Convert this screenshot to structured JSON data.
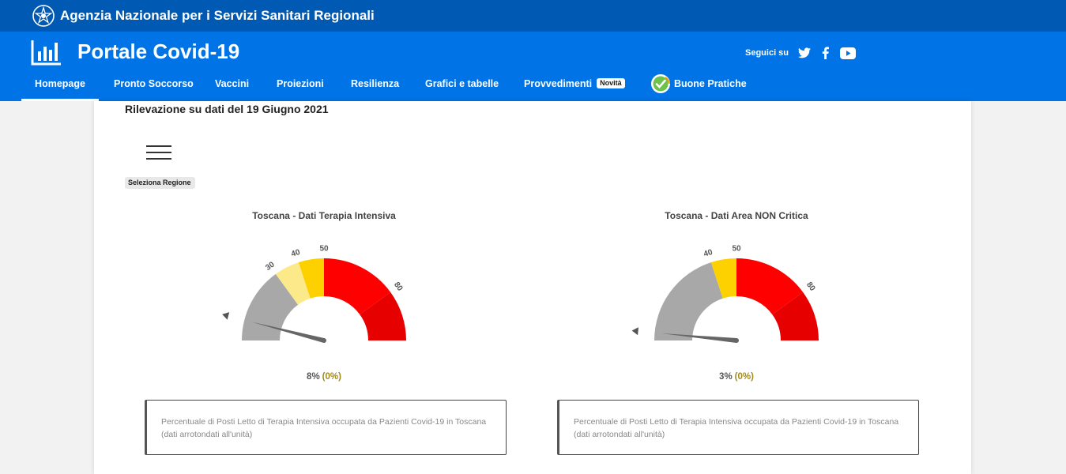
{
  "agency": {
    "title": "Agenzia Nazionale per i Servizi Sanitari Regionali"
  },
  "portal": {
    "title": "Portale Covid-19"
  },
  "social": {
    "follow_label": "Seguici su",
    "icons": [
      "twitter-icon",
      "facebook-icon",
      "youtube-icon"
    ]
  },
  "nav": {
    "items": [
      {
        "label": "Homepage",
        "active": true
      },
      {
        "label": "Pronto Soccorso"
      },
      {
        "label": "Vaccini"
      },
      {
        "label": "Proiezioni"
      },
      {
        "label": "Resilienza"
      },
      {
        "label": "Grafici e tabelle"
      },
      {
        "label": "Provvedimenti",
        "badge": "Novità"
      },
      {
        "label": "Buone Pratiche"
      }
    ]
  },
  "content": {
    "survey_date": "Rilevazione su dati del 19 Giugno 2021",
    "region_select_label": "Seleziona Regione"
  },
  "gauges": [
    {
      "title": "Toscana - Dati Terapia Intensiva",
      "value_pct": 8,
      "value_text": "8%",
      "delta_text": "(0%)",
      "tick_labels": [
        "30",
        "40",
        "50",
        "80"
      ],
      "bands": [
        {
          "from": 0,
          "to": 30,
          "color": "#a8a8a8"
        },
        {
          "from": 30,
          "to": 40,
          "color": "#fbe98a"
        },
        {
          "from": 40,
          "to": 50,
          "color": "#fdd000"
        },
        {
          "from": 50,
          "to": 80,
          "color": "#fe0000"
        },
        {
          "from": 80,
          "to": 100,
          "color": "#e60000"
        }
      ],
      "description": "Percentuale di Posti Letto di Terapia Intensiva occupata da Pazienti Covid-19 in Toscana (dati arrotondati all'unità)"
    },
    {
      "title": "Toscana - Dati Area NON Critica",
      "value_pct": 3,
      "value_text": "3%",
      "delta_text": "(0%)",
      "tick_labels": [
        "40",
        "50",
        "80"
      ],
      "bands": [
        {
          "from": 0,
          "to": 40,
          "color": "#a8a8a8"
        },
        {
          "from": 40,
          "to": 50,
          "color": "#fdd000"
        },
        {
          "from": 50,
          "to": 80,
          "color": "#fe0000"
        },
        {
          "from": 80,
          "to": 100,
          "color": "#e60000"
        }
      ],
      "description": "Percentuale di Posti Letto di Terapia Intensiva occupata da Pazienti Covid-19 in Toscana (dati arrotondati all'unità)"
    }
  ],
  "colors": {
    "topbar": "#0059b3",
    "mainbar": "#0073e6",
    "needle": "#666666"
  }
}
